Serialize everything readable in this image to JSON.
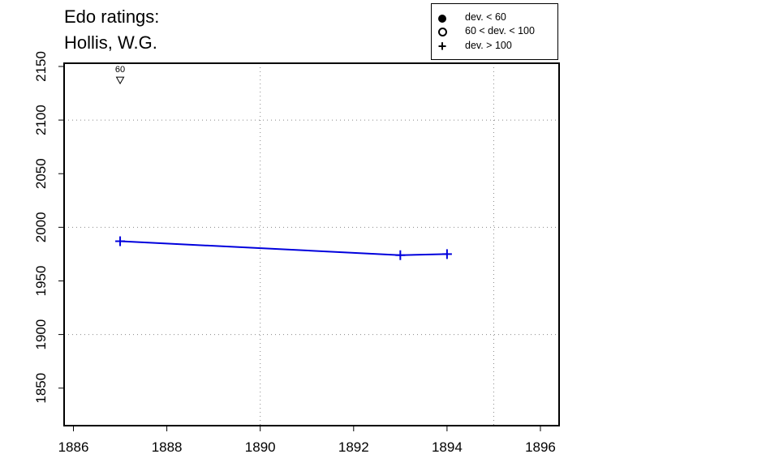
{
  "title_line1": "Edo ratings:",
  "title_line2": "Hollis, W.G.",
  "legend": {
    "items": [
      {
        "symbol": "filled-circle-icon",
        "label": "dev. < 60"
      },
      {
        "symbol": "open-circle-icon",
        "label": "60 < dev. < 100"
      },
      {
        "symbol": "plus-icon",
        "label": "dev. > 100"
      }
    ]
  },
  "colors": {
    "line": "#0000dd",
    "axis": "#000000",
    "grid": "#888888"
  },
  "chart_data": {
    "type": "line",
    "title": "Edo ratings: Hollis, W.G.",
    "xlabel": "",
    "ylabel": "",
    "xlim": [
      1885.8,
      1896.4
    ],
    "ylim": [
      1815,
      2153
    ],
    "xticks": [
      1886,
      1888,
      1890,
      1892,
      1894,
      1896
    ],
    "yticks": [
      1850,
      1900,
      1950,
      2000,
      2050,
      2100,
      2150
    ],
    "grid_x": [
      1890,
      1895
    ],
    "grid_y": [
      1900,
      2000,
      2100
    ],
    "series": [
      {
        "x": [
          1887,
          1893,
          1894
        ],
        "y": [
          1987,
          1974,
          1975
        ],
        "marker": "plus"
      }
    ],
    "annotations": [
      {
        "x": 1887,
        "y": 2137,
        "marker": "down-triangle",
        "label": "60"
      }
    ]
  }
}
